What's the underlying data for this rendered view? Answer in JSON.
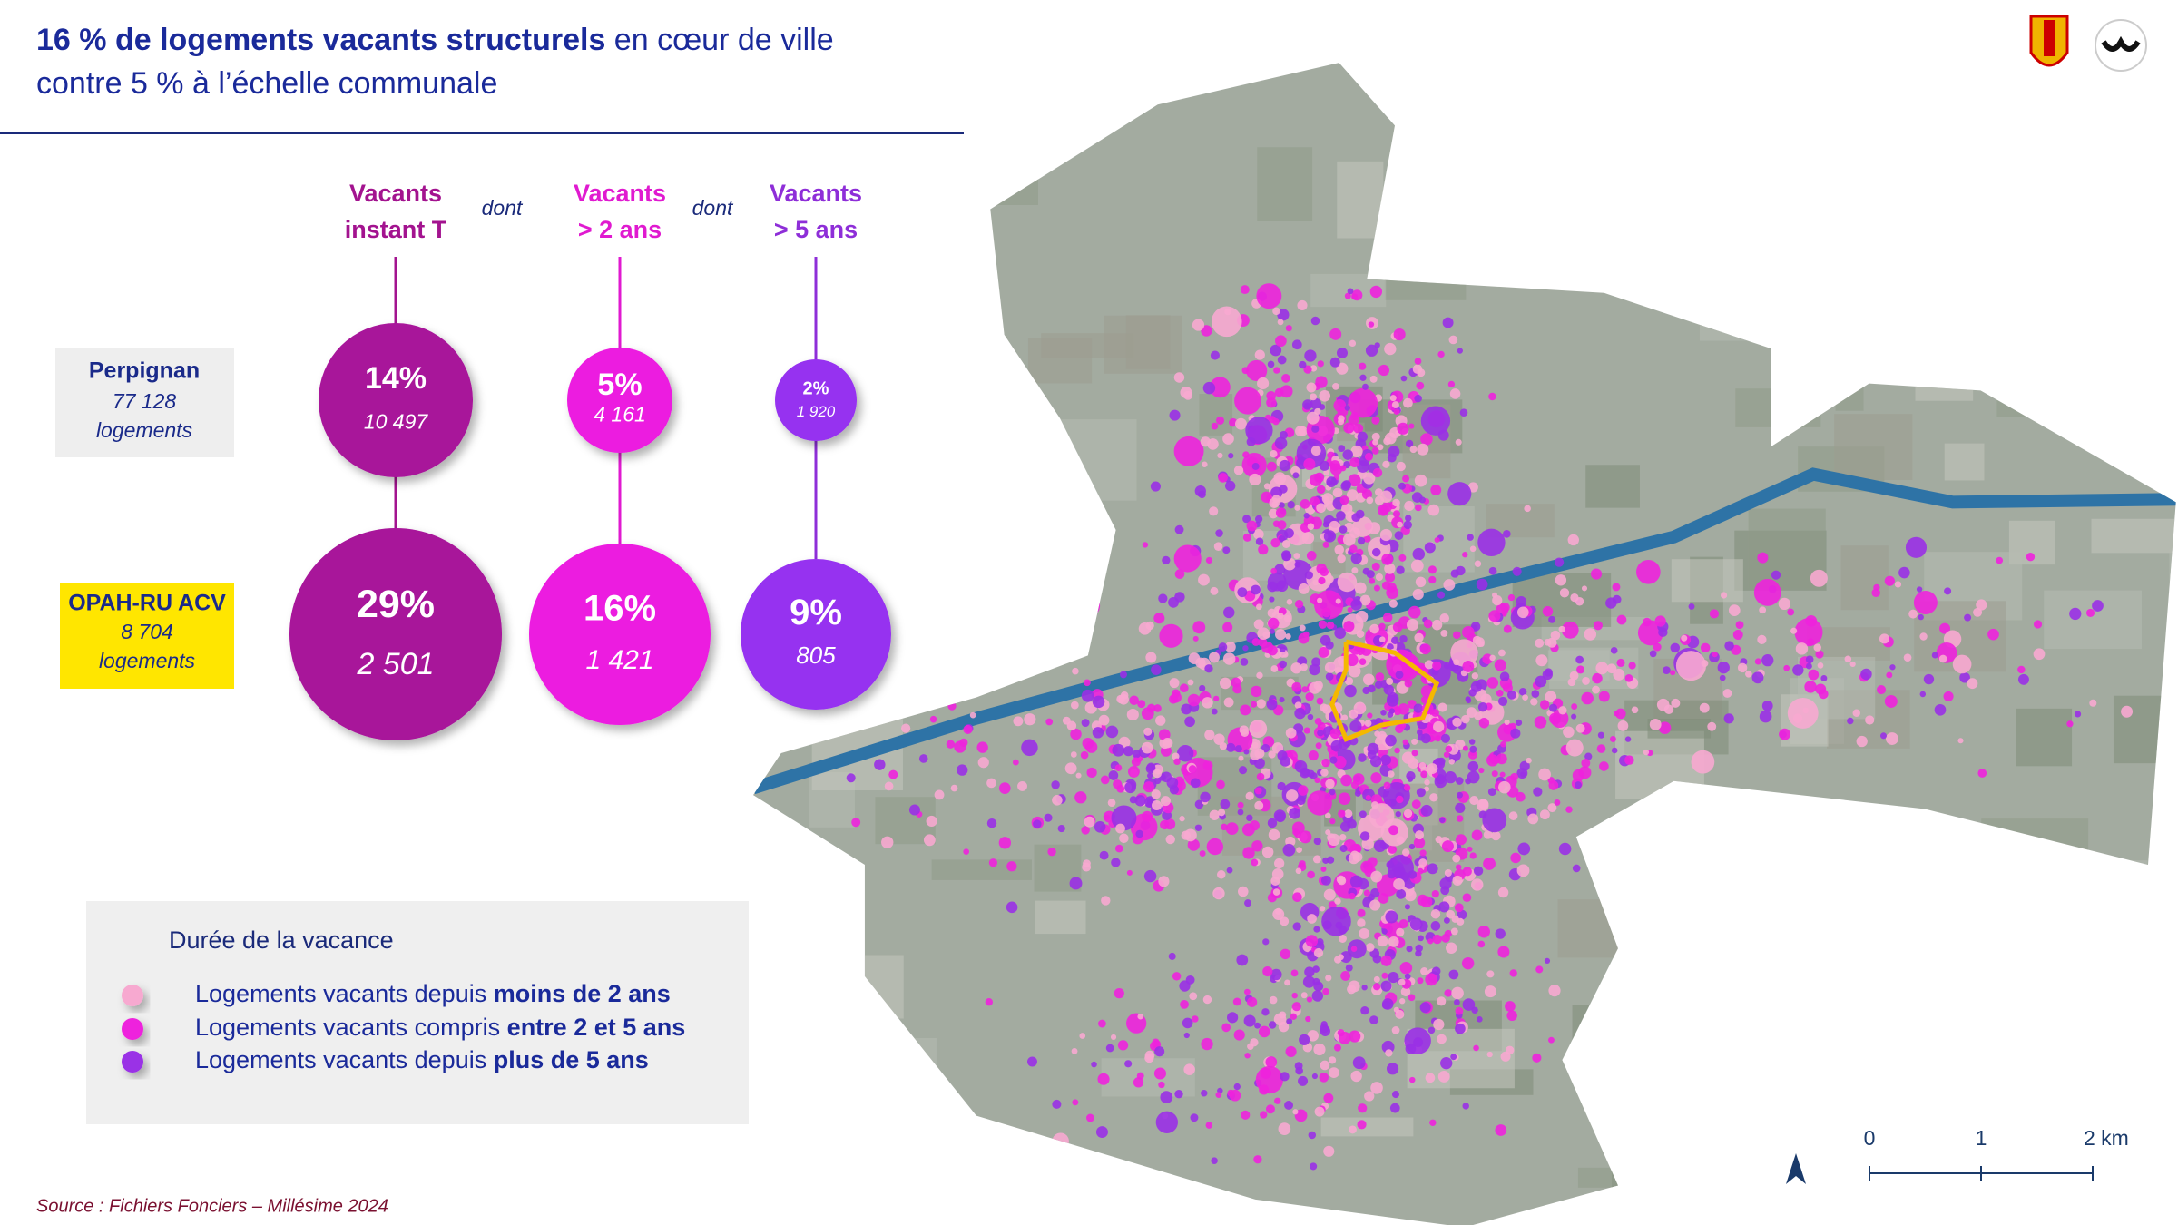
{
  "header": {
    "title_bold": "16 % de logements vacants structurels",
    "title_rest": " en cœur de ville",
    "title_line2": "contre 5 % à l’échelle communale"
  },
  "columns": [
    {
      "line1": "Vacants",
      "line2": "instant T"
    },
    {
      "line1": "Vacants",
      "line2": "> 2 ans"
    },
    {
      "line1": "Vacants",
      "line2": "> 5 ans"
    }
  ],
  "connectors": [
    "dont",
    "dont"
  ],
  "rows": [
    {
      "name": "Perpignan",
      "count": "77 128",
      "unit": "logements",
      "cells": [
        {
          "percent": "14%",
          "count": "10 497"
        },
        {
          "percent": "5%",
          "count": "4 161"
        },
        {
          "percent": "2%",
          "count": "1 920"
        }
      ]
    },
    {
      "name": "OPAH-RU ACV",
      "count": "8 704",
      "unit": "logements",
      "cells": [
        {
          "percent": "29%",
          "count": "2 501"
        },
        {
          "percent": "16%",
          "count": "1 421"
        },
        {
          "percent": "9%",
          "count": "805"
        }
      ]
    }
  ],
  "legend": {
    "title": "Durée de la vacance",
    "items": [
      {
        "text": "Logements vacants depuis ",
        "bold": "moins de 2 ans"
      },
      {
        "text": "Logements vacants compris ",
        "bold": "entre 2 et 5 ans"
      },
      {
        "text": "Logements vacants depuis ",
        "bold": "plus de 5 ans"
      }
    ]
  },
  "scale_bar": [
    "0",
    "1",
    "2 km"
  ],
  "source": "Source : Fichiers Fonciers – Millésime 2024"
}
